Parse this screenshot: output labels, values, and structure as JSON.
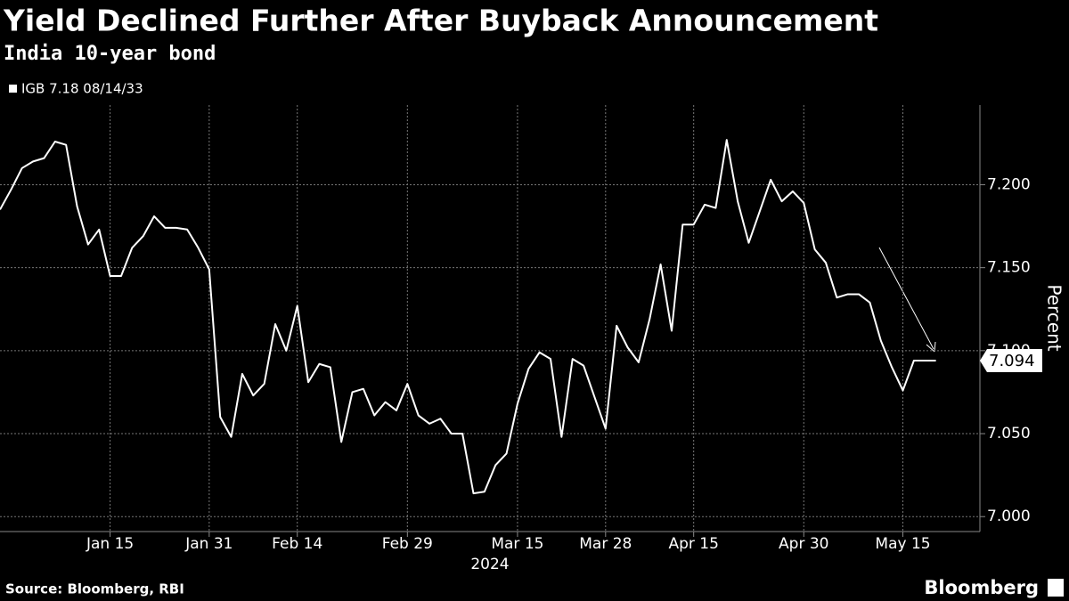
{
  "chart_data": {
    "type": "line",
    "title": "Yield Declined Further After Buyback Announcement",
    "subtitle": "India 10-year bond",
    "y_axis_label": "Percent",
    "x_axis_label": "2024",
    "source": "Source: Bloomberg, RBI",
    "brand": "Bloomberg",
    "x": [
      "2024-01-01",
      "2024-01-02",
      "2024-01-03",
      "2024-01-04",
      "2024-01-05",
      "2024-01-08",
      "2024-01-09",
      "2024-01-10",
      "2024-01-11",
      "2024-01-12",
      "2024-01-15",
      "2024-01-16",
      "2024-01-17",
      "2024-01-18",
      "2024-01-19",
      "2024-01-23",
      "2024-01-24",
      "2024-01-25",
      "2024-01-30",
      "2024-01-31",
      "2024-02-01",
      "2024-02-02",
      "2024-02-05",
      "2024-02-06",
      "2024-02-07",
      "2024-02-09",
      "2024-02-12",
      "2024-02-14",
      "2024-02-15",
      "2024-02-16",
      "2024-02-20",
      "2024-02-21",
      "2024-02-22",
      "2024-02-23",
      "2024-02-26",
      "2024-02-27",
      "2024-02-28",
      "2024-02-29",
      "2024-03-01",
      "2024-03-04",
      "2024-03-05",
      "2024-03-06",
      "2024-03-07",
      "2024-03-11",
      "2024-03-12",
      "2024-03-13",
      "2024-03-14",
      "2024-03-15",
      "2024-03-18",
      "2024-03-19",
      "2024-03-20",
      "2024-03-21",
      "2024-03-22",
      "2024-03-26",
      "2024-03-27",
      "2024-03-28",
      "2024-04-02",
      "2024-04-03",
      "2024-04-04",
      "2024-04-05",
      "2024-04-08",
      "2024-04-10",
      "2024-04-12",
      "2024-04-15",
      "2024-04-16",
      "2024-04-18",
      "2024-04-19",
      "2024-04-22",
      "2024-04-23",
      "2024-04-24",
      "2024-04-25",
      "2024-04-26",
      "2024-04-29",
      "2024-04-30",
      "2024-05-02",
      "2024-05-03",
      "2024-05-06",
      "2024-05-08",
      "2024-05-09",
      "2024-05-10",
      "2024-05-13",
      "2024-05-14",
      "2024-05-15",
      "2024-05-16",
      "2024-05-17",
      "2024-05-21"
    ],
    "series": [
      {
        "name": "IGB 7.18 08/14/33",
        "color": "#ffffff",
        "values": [
          7.185,
          7.197,
          7.21,
          7.214,
          7.216,
          7.226,
          7.224,
          7.187,
          7.164,
          7.173,
          7.145,
          7.145,
          7.162,
          7.169,
          7.181,
          7.174,
          7.174,
          7.173,
          7.162,
          7.149,
          7.06,
          7.048,
          7.086,
          7.073,
          7.08,
          7.116,
          7.1,
          7.127,
          7.081,
          7.092,
          7.09,
          7.045,
          7.075,
          7.077,
          7.061,
          7.069,
          7.064,
          7.08,
          7.061,
          7.056,
          7.059,
          7.05,
          7.05,
          7.014,
          7.015,
          7.031,
          7.038,
          7.068,
          7.089,
          7.099,
          7.095,
          7.048,
          7.095,
          7.091,
          7.072,
          7.053,
          7.115,
          7.102,
          7.093,
          7.119,
          7.152,
          7.112,
          7.176,
          7.176,
          7.188,
          7.186,
          7.227,
          7.19,
          7.165,
          7.184,
          7.203,
          7.19,
          7.196,
          7.189,
          7.161,
          7.153,
          7.132,
          7.134,
          7.134,
          7.129,
          7.106,
          7.09,
          7.076,
          7.094,
          7.094,
          7.094
        ]
      }
    ],
    "ylim": [
      6.991,
      7.248
    ],
    "yticks": [
      {
        "value": 7.0,
        "label": "7.000"
      },
      {
        "value": 7.05,
        "label": "7.050"
      },
      {
        "value": 7.1,
        "label": "7.100"
      },
      {
        "value": 7.15,
        "label": "7.150"
      },
      {
        "value": 7.2,
        "label": "7.200"
      }
    ],
    "xticks": [
      {
        "value": "2024-01-15",
        "label": "Jan 15"
      },
      {
        "value": "2024-01-31",
        "label": "Jan 31"
      },
      {
        "value": "2024-02-14",
        "label": "Feb 14"
      },
      {
        "value": "2024-02-29",
        "label": "Feb 29"
      },
      {
        "value": "2024-03-15",
        "label": "Mar 15"
      },
      {
        "value": "2024-03-28",
        "label": "Mar 28"
      },
      {
        "value": "2024-04-15",
        "label": "Apr 15"
      },
      {
        "value": "2024-04-30",
        "label": "Apr 30"
      },
      {
        "value": "2024-05-15",
        "label": "May 15"
      }
    ],
    "grid": true,
    "legend": "top-left"
  }
}
